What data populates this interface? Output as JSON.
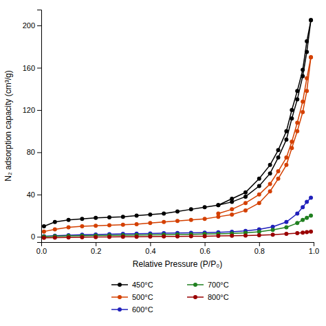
{
  "chart_data": {
    "type": "line",
    "title": "",
    "xlabel": "Relative Pressure (P/P₀)",
    "ylabel": "N₂ adsorption capacity (cm³/g)",
    "xlim": [
      0.0,
      1.0
    ],
    "ylim": [
      -5,
      215
    ],
    "xticks": [
      {
        "value": 0.0,
        "label": "0.0"
      },
      0.2,
      0.4,
      0.6,
      0.8,
      {
        "value": 1.0,
        "label": "1.0"
      }
    ],
    "yticks": [
      0,
      40,
      80,
      120,
      160,
      200
    ],
    "grid": false,
    "legend": "bottom",
    "marker": "circle",
    "line_style": "solid",
    "series": [
      {
        "name": "450°C",
        "color": "#000000",
        "x": [
          0.01,
          0.05,
          0.1,
          0.15,
          0.2,
          0.25,
          0.3,
          0.35,
          0.4,
          0.45,
          0.5,
          0.55,
          0.6,
          0.65,
          0.7,
          0.75,
          0.8,
          0.84,
          0.87,
          0.9,
          0.92,
          0.94,
          0.96,
          0.975,
          0.99
        ],
        "values": [
          10,
          14,
          16,
          17,
          18,
          18.5,
          19,
          20,
          21,
          22,
          24,
          26,
          28,
          30,
          33,
          38,
          48,
          60,
          75,
          92,
          112,
          130,
          152,
          175,
          205
        ]
      },
      {
        "color": "#000000",
        "x": [
          0.99,
          0.975,
          0.96,
          0.94,
          0.92,
          0.9,
          0.87,
          0.84,
          0.8,
          0.75,
          0.7,
          0.65
        ],
        "values": [
          205,
          185,
          158,
          138,
          120,
          100,
          82,
          68,
          55,
          42,
          36,
          30
        ]
      },
      {
        "name": "500°C",
        "color": "#d44000",
        "x": [
          0.01,
          0.05,
          0.1,
          0.15,
          0.2,
          0.25,
          0.3,
          0.35,
          0.4,
          0.45,
          0.5,
          0.55,
          0.6,
          0.65,
          0.7,
          0.75,
          0.8,
          0.84,
          0.87,
          0.9,
          0.92,
          0.94,
          0.96,
          0.975,
          0.99
        ],
        "values": [
          5,
          7,
          9,
          10,
          10.5,
          11,
          11.5,
          12,
          13,
          14,
          15,
          16,
          17,
          19,
          21,
          25,
          32,
          43,
          55,
          68,
          84,
          100,
          118,
          138,
          170
        ]
      },
      {
        "color": "#d44000",
        "x": [
          0.99,
          0.975,
          0.96,
          0.94,
          0.92,
          0.9,
          0.87,
          0.84,
          0.8,
          0.75,
          0.7,
          0.65
        ],
        "values": [
          170,
          150,
          128,
          108,
          90,
          75,
          62,
          50,
          40,
          32,
          26,
          22
        ]
      },
      {
        "name": "600°C",
        "color": "#2020bb",
        "x": [
          0.01,
          0.05,
          0.1,
          0.15,
          0.2,
          0.25,
          0.3,
          0.35,
          0.4,
          0.45,
          0.5,
          0.55,
          0.6,
          0.65,
          0.7,
          0.75,
          0.8,
          0.85,
          0.9,
          0.94,
          0.96,
          0.975,
          0.99
        ],
        "values": [
          0.5,
          1.0,
          1.5,
          2.0,
          2.2,
          2.5,
          2.8,
          3.0,
          3.2,
          3.4,
          3.6,
          3.8,
          4.0,
          4.3,
          4.8,
          5.5,
          7.0,
          9.5,
          14,
          22,
          28,
          33,
          37
        ]
      },
      {
        "name": "700°C",
        "color": "#208020",
        "x": [
          0.01,
          0.05,
          0.1,
          0.15,
          0.2,
          0.25,
          0.3,
          0.35,
          0.4,
          0.45,
          0.5,
          0.55,
          0.6,
          0.65,
          0.7,
          0.75,
          0.8,
          0.85,
          0.9,
          0.94,
          0.96,
          0.975,
          0.99
        ],
        "values": [
          0.2,
          0.5,
          0.8,
          1.0,
          1.2,
          1.4,
          1.5,
          1.6,
          1.8,
          2.0,
          2.2,
          2.4,
          2.6,
          2.8,
          3.2,
          3.8,
          4.8,
          6.5,
          9,
          13,
          16,
          18,
          20
        ]
      },
      {
        "name": "800°C",
        "color": "#990000",
        "x": [
          0.01,
          0.05,
          0.1,
          0.15,
          0.2,
          0.25,
          0.3,
          0.35,
          0.4,
          0.45,
          0.5,
          0.55,
          0.6,
          0.65,
          0.7,
          0.75,
          0.8,
          0.85,
          0.9,
          0.94,
          0.96,
          0.975,
          0.99
        ],
        "values": [
          -1.0,
          -0.8,
          -0.6,
          -0.4,
          -0.2,
          -0.1,
          0.0,
          0.1,
          0.2,
          0.3,
          0.4,
          0.5,
          0.6,
          0.8,
          1.0,
          1.2,
          1.5,
          2.0,
          2.8,
          3.5,
          4.0,
          4.5,
          5.0
        ]
      }
    ]
  }
}
